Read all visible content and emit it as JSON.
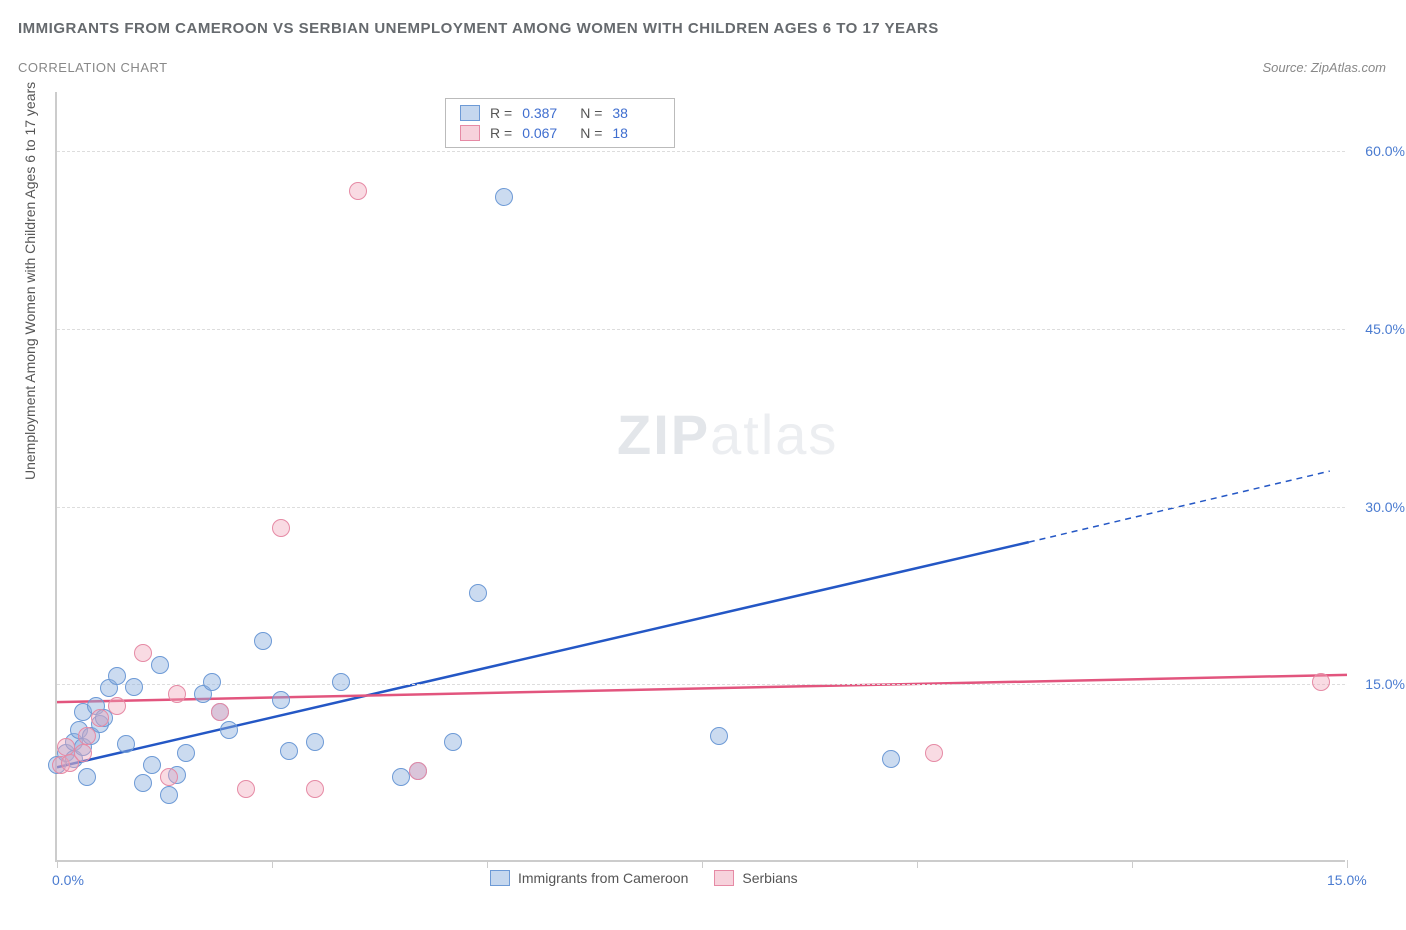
{
  "title": "IMMIGRANTS FROM CAMEROON VS SERBIAN UNEMPLOYMENT AMONG WOMEN WITH CHILDREN AGES 6 TO 17 YEARS",
  "subtitle": "CORRELATION CHART",
  "source_label": "Source: ZipAtlas.com",
  "ylabel": "Unemployment Among Women with Children Ages 6 to 17 years",
  "watermark_a": "ZIP",
  "watermark_b": "atlas",
  "chart": {
    "type": "scatter",
    "xlim": [
      0,
      15
    ],
    "ylim": [
      0,
      65
    ],
    "xticks": [
      0,
      2.5,
      5,
      7.5,
      10,
      12.5,
      15
    ],
    "xtick_labels": {
      "0": "0.0%",
      "15": "15.0%"
    },
    "yticks": [
      15.0,
      30.0,
      45.0,
      60.0
    ],
    "ytick_labels": [
      "15.0%",
      "30.0%",
      "45.0%",
      "60.0%"
    ],
    "grid_color": "#dddddd",
    "axis_color": "#cccccc",
    "background_color": "#ffffff",
    "marker_size": 18,
    "series": [
      {
        "name": "Immigrants from Cameroon",
        "color_fill": "rgba(140,175,222,0.45)",
        "color_stroke": "#6d9ad6",
        "R": "0.387",
        "N": "38",
        "trend": {
          "x1": 0.0,
          "y1": 8.0,
          "x2": 11.3,
          "y2": 27.0,
          "dash_x2": 14.8,
          "dash_y2": 33.0,
          "color": "#2457c5",
          "width": 2.5
        },
        "points": [
          [
            0.0,
            8.0
          ],
          [
            0.1,
            9.0
          ],
          [
            0.2,
            10.0
          ],
          [
            0.2,
            8.5
          ],
          [
            0.25,
            11.0
          ],
          [
            0.3,
            9.5
          ],
          [
            0.3,
            12.5
          ],
          [
            0.35,
            7.0
          ],
          [
            0.4,
            10.5
          ],
          [
            0.45,
            13.0
          ],
          [
            0.5,
            11.5
          ],
          [
            0.55,
            12.0
          ],
          [
            0.6,
            14.5
          ],
          [
            0.7,
            15.5
          ],
          [
            0.8,
            9.8
          ],
          [
            0.9,
            14.6
          ],
          [
            1.0,
            6.5
          ],
          [
            1.1,
            8.0
          ],
          [
            1.2,
            16.5
          ],
          [
            1.3,
            5.5
          ],
          [
            1.4,
            7.2
          ],
          [
            1.5,
            9.0
          ],
          [
            1.7,
            14.0
          ],
          [
            1.8,
            15.0
          ],
          [
            1.9,
            12.5
          ],
          [
            2.0,
            11.0
          ],
          [
            2.4,
            18.5
          ],
          [
            2.6,
            13.5
          ],
          [
            2.7,
            9.2
          ],
          [
            3.0,
            10.0
          ],
          [
            3.3,
            15.0
          ],
          [
            4.0,
            7.0
          ],
          [
            4.2,
            7.5
          ],
          [
            4.6,
            10.0
          ],
          [
            4.9,
            22.5
          ],
          [
            5.2,
            56.0
          ],
          [
            7.7,
            10.5
          ],
          [
            9.7,
            8.5
          ]
        ]
      },
      {
        "name": "Serbians",
        "color_fill": "rgba(240,165,185,0.40)",
        "color_stroke": "#e68aa5",
        "R": "0.067",
        "N": "18",
        "trend": {
          "x1": 0.0,
          "y1": 13.5,
          "x2": 15.0,
          "y2": 15.8,
          "color": "#e2557e",
          "width": 2.5
        },
        "points": [
          [
            0.05,
            8.0
          ],
          [
            0.1,
            9.5
          ],
          [
            0.15,
            8.2
          ],
          [
            0.3,
            9.0
          ],
          [
            0.35,
            10.5
          ],
          [
            0.5,
            12.0
          ],
          [
            0.7,
            13.0
          ],
          [
            1.0,
            17.5
          ],
          [
            1.3,
            7.0
          ],
          [
            1.4,
            14.0
          ],
          [
            1.9,
            12.5
          ],
          [
            2.2,
            6.0
          ],
          [
            2.6,
            28.0
          ],
          [
            3.0,
            6.0
          ],
          [
            3.5,
            56.5
          ],
          [
            4.2,
            7.5
          ],
          [
            10.2,
            9.0
          ],
          [
            14.7,
            15.0
          ]
        ]
      }
    ]
  },
  "legend_top": {
    "r_label": "R =",
    "n_label": "N ="
  },
  "legend_bottom": {
    "items": [
      "Immigrants from Cameroon",
      "Serbians"
    ]
  }
}
